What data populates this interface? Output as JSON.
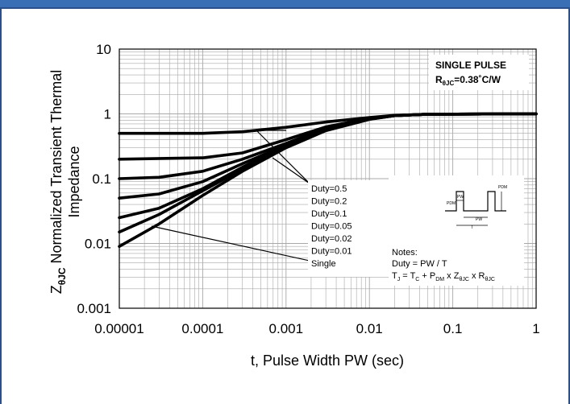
{
  "chart_data": {
    "type": "line",
    "x_scale": "log",
    "y_scale": "log",
    "xlim": [
      1e-05,
      1
    ],
    "ylim": [
      0.001,
      10
    ],
    "x_ticks": [
      "0.00001",
      "0.0001",
      "0.001",
      "0.01",
      "0.1",
      "1"
    ],
    "y_ticks": [
      "10",
      "1",
      "0.1",
      "0.01",
      "0.001"
    ],
    "xlabel": "t, Pulse Width PW (sec)",
    "ylabel": {
      "sym": "Z",
      "sub": "θJC",
      "line1": " Normalized Transient Thermal",
      "line2": "Impedance"
    },
    "grid": true,
    "box": {
      "title": "SINGLE PULSE",
      "r_sym": "R",
      "r_sub": "θJC",
      "r_val": "=0.38˚C/W"
    },
    "legend": [
      "Duty=0.5",
      "Duty=0.2",
      "Duty=0.1",
      "Duty=0.05",
      "Duty=0.02",
      "Duty=0.01",
      "Single"
    ],
    "notes": {
      "title": "Notes:",
      "line1": "Duty = PW / T",
      "line2": {
        "a": "T",
        "a_sub": "J",
        "b": " = T",
        "b_sub": "C",
        "c": " + P",
        "c_sub": "DM",
        "d": " x Z",
        "d_sub": "θJC",
        "e": " x R",
        "e_sub": "θJC"
      }
    },
    "pulse_labels": {
      "pdm": "PDM",
      "pw": "PW",
      "t": "T"
    },
    "series": [
      {
        "values": [
          [
            1e-05,
            0.5
          ],
          [
            0.0001,
            0.5
          ],
          [
            0.0003,
            0.53
          ],
          [
            0.001,
            0.62
          ],
          [
            0.003,
            0.75
          ],
          [
            0.01,
            0.88
          ],
          [
            0.02,
            0.95
          ],
          [
            0.05,
            0.99
          ],
          [
            1,
            1
          ]
        ]
      },
      {
        "values": [
          [
            1e-05,
            0.2
          ],
          [
            0.0001,
            0.21
          ],
          [
            0.0003,
            0.25
          ],
          [
            0.001,
            0.4
          ],
          [
            0.003,
            0.63
          ],
          [
            0.01,
            0.85
          ],
          [
            0.02,
            0.94
          ],
          [
            0.05,
            0.99
          ],
          [
            1,
            1
          ]
        ]
      },
      {
        "values": [
          [
            1e-05,
            0.1
          ],
          [
            3e-05,
            0.105
          ],
          [
            0.0001,
            0.13
          ],
          [
            0.0003,
            0.2
          ],
          [
            0.001,
            0.35
          ],
          [
            0.003,
            0.6
          ],
          [
            0.01,
            0.84
          ],
          [
            0.02,
            0.94
          ],
          [
            0.05,
            0.99
          ],
          [
            1,
            1
          ]
        ]
      },
      {
        "values": [
          [
            1e-05,
            0.05
          ],
          [
            3e-05,
            0.058
          ],
          [
            0.0001,
            0.09
          ],
          [
            0.0003,
            0.17
          ],
          [
            0.001,
            0.33
          ],
          [
            0.003,
            0.58
          ],
          [
            0.01,
            0.84
          ],
          [
            0.02,
            0.94
          ],
          [
            0.05,
            0.99
          ],
          [
            1,
            1
          ]
        ]
      },
      {
        "values": [
          [
            1e-05,
            0.025
          ],
          [
            3e-05,
            0.035
          ],
          [
            0.0001,
            0.07
          ],
          [
            0.0003,
            0.15
          ],
          [
            0.001,
            0.32
          ],
          [
            0.003,
            0.57
          ],
          [
            0.01,
            0.83
          ],
          [
            0.02,
            0.94
          ],
          [
            0.05,
            0.99
          ],
          [
            1,
            1
          ]
        ]
      },
      {
        "values": [
          [
            1e-05,
            0.015
          ],
          [
            3e-05,
            0.028
          ],
          [
            0.0001,
            0.065
          ],
          [
            0.0003,
            0.14
          ],
          [
            0.001,
            0.31
          ],
          [
            0.003,
            0.56
          ],
          [
            0.01,
            0.83
          ],
          [
            0.02,
            0.94
          ],
          [
            0.05,
            0.99
          ],
          [
            1,
            1
          ]
        ]
      },
      {
        "values": [
          [
            1e-05,
            0.009
          ],
          [
            3e-05,
            0.02
          ],
          [
            0.0001,
            0.055
          ],
          [
            0.0003,
            0.13
          ],
          [
            0.001,
            0.3
          ],
          [
            0.003,
            0.55
          ],
          [
            0.01,
            0.82
          ],
          [
            0.02,
            0.94
          ],
          [
            0.05,
            0.99
          ],
          [
            1,
            1
          ]
        ]
      }
    ]
  }
}
